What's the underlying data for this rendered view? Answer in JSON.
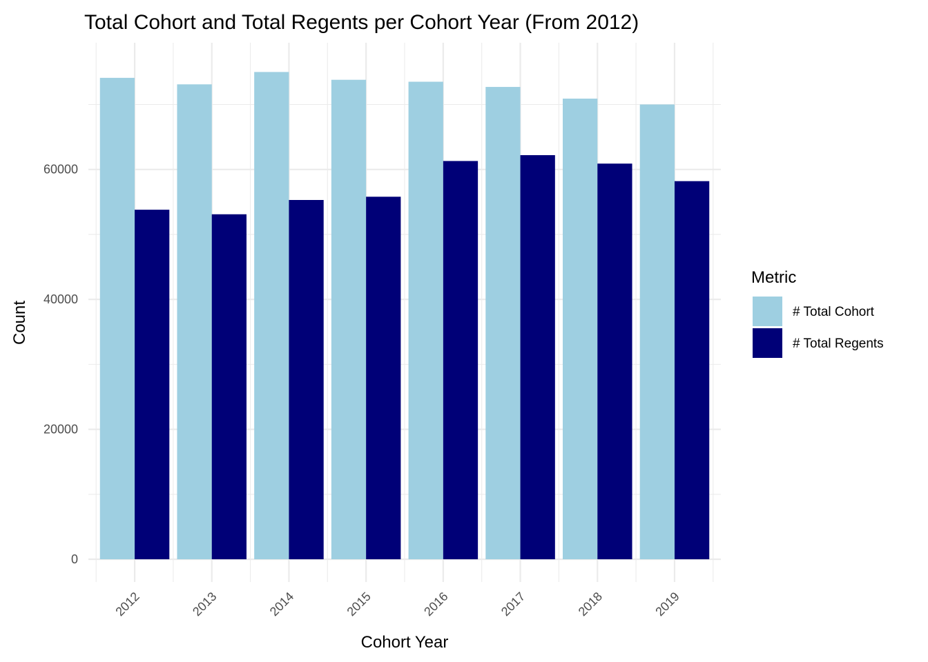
{
  "chart_data": {
    "type": "bar",
    "title": "Total Cohort and Total Regents per Cohort Year (From 2012)",
    "xlabel": "Cohort Year",
    "ylabel": "Count",
    "categories": [
      "2012",
      "2013",
      "2014",
      "2015",
      "2016",
      "2017",
      "2018",
      "2019"
    ],
    "series": [
      {
        "name": "# Total Cohort",
        "color": "#9ecfe1",
        "values": [
          74100,
          73100,
          75000,
          73800,
          73500,
          72700,
          70900,
          70000
        ]
      },
      {
        "name": "# Total Regents",
        "color": "#000077",
        "values": [
          53800,
          53100,
          55300,
          55800,
          61300,
          62200,
          60900,
          58200
        ]
      }
    ],
    "ylim": [
      -3500,
      79500
    ],
    "yticks": [
      0,
      20000,
      40000,
      60000
    ],
    "ytick_labels": [
      "0",
      "20000",
      "40000",
      "60000"
    ],
    "grid": true,
    "legend": {
      "title": "Metric",
      "position": "right"
    }
  }
}
